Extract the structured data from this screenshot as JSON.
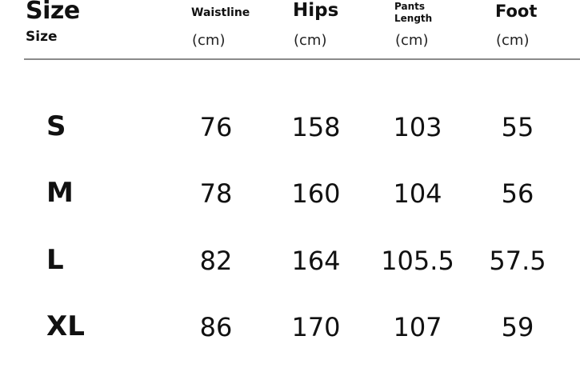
{
  "header": {
    "title": "Size",
    "subtitle": "Size",
    "columns": [
      {
        "name": "Waistline",
        "unit": "(cm)"
      },
      {
        "name": "Hips",
        "unit": "(cm)"
      },
      {
        "name": "Pants Length",
        "name_line1": "Pants",
        "name_line2": "Length",
        "unit": "(cm)"
      },
      {
        "name": "Foot",
        "unit": "(cm)"
      }
    ]
  },
  "rows": [
    {
      "size": "S",
      "values": [
        "76",
        "158",
        "103",
        "55"
      ]
    },
    {
      "size": "M",
      "values": [
        "78",
        "160",
        "104",
        "56"
      ]
    },
    {
      "size": "L",
      "values": [
        "82",
        "164",
        "105.5",
        "57.5"
      ]
    },
    {
      "size": "XL",
      "values": [
        "86",
        "170",
        "107",
        "59"
      ]
    }
  ]
}
